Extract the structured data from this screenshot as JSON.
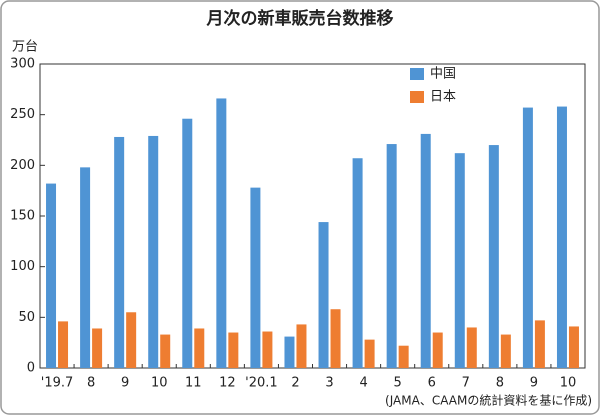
{
  "chart_data": {
    "type": "bar",
    "title": "月次の新車販売台数推移",
    "y_label": "万台",
    "source": "(JAMA、CAAMの統計資料を基に作成)",
    "categories": [
      "'19.7",
      "8",
      "9",
      "10",
      "11",
      "12",
      "'20.1",
      "2",
      "3",
      "4",
      "5",
      "6",
      "7",
      "8",
      "9",
      "10"
    ],
    "series": [
      {
        "name": "中国",
        "color": "#4f94d4",
        "values": [
          182,
          198,
          228,
          229,
          246,
          266,
          178,
          31,
          144,
          207,
          221,
          231,
          212,
          220,
          257,
          258
        ]
      },
      {
        "name": "日本",
        "color": "#ee7d31",
        "values": [
          46,
          39,
          55,
          33,
          39,
          35,
          36,
          43,
          58,
          28,
          22,
          35,
          40,
          33,
          47,
          41
        ]
      }
    ],
    "ylim": [
      0,
      300
    ],
    "yticks": [
      0,
      50,
      100,
      150,
      200,
      250,
      300
    ],
    "grid": false,
    "legend": "top-right"
  }
}
